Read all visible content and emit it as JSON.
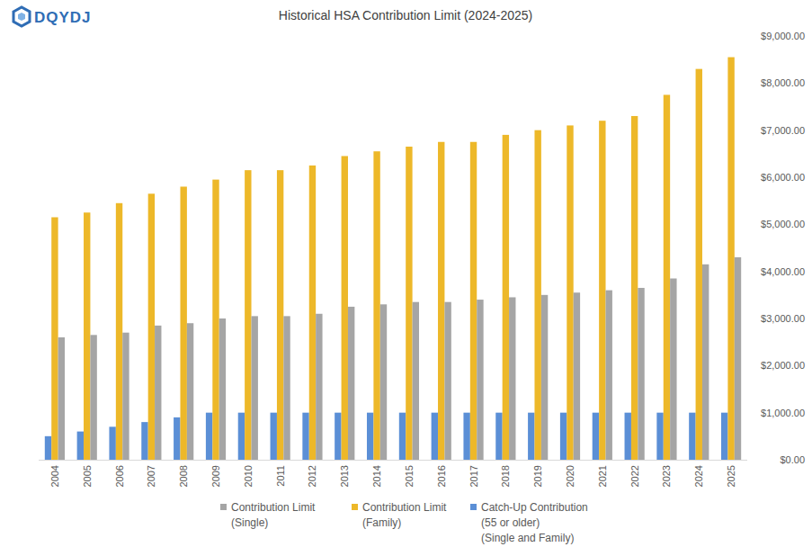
{
  "chart_data": {
    "type": "bar",
    "title": "Historical HSA Contribution Limit (2024-2025)",
    "annotations": [
      "DQYDJ"
    ],
    "categories": [
      "2004",
      "2005",
      "2006",
      "2007",
      "2008",
      "2009",
      "2010",
      "2011",
      "2012",
      "2013",
      "2014",
      "2015",
      "2016",
      "2017",
      "2018",
      "2019",
      "2020",
      "2021",
      "2022",
      "2023",
      "2024",
      "2025"
    ],
    "series": [
      {
        "name": "Catch-Up Contribution (55 or older) (Single and Family)",
        "color": "#5B8FD6",
        "values": [
          500,
          600,
          700,
          800,
          900,
          1000,
          1000,
          1000,
          1000,
          1000,
          1000,
          1000,
          1000,
          1000,
          1000,
          1000,
          1000,
          1000,
          1000,
          1000,
          1000,
          1000
        ]
      },
      {
        "name": "Contribution Limit (Family)",
        "color": "#EDB829",
        "values": [
          5150,
          5250,
          5450,
          5650,
          5800,
          5950,
          6150,
          6150,
          6250,
          6450,
          6550,
          6650,
          6750,
          6750,
          6900,
          7000,
          7100,
          7200,
          7300,
          7750,
          8300,
          8550
        ]
      },
      {
        "name": "Contribution Limit (Single)",
        "color": "#A5A5A5",
        "values": [
          2600,
          2650,
          2700,
          2850,
          2900,
          3000,
          3050,
          3050,
          3100,
          3250,
          3300,
          3350,
          3350,
          3400,
          3450,
          3500,
          3550,
          3600,
          3650,
          3850,
          4150,
          4300
        ]
      }
    ],
    "ylim": [
      0,
      9000
    ],
    "yticks": [
      {
        "value": 0,
        "label": "$0.00"
      },
      {
        "value": 1000,
        "label": "$1,000.00"
      },
      {
        "value": 2000,
        "label": "$2,000.00"
      },
      {
        "value": 3000,
        "label": "$3,000.00"
      },
      {
        "value": 4000,
        "label": "$4,000.00"
      },
      {
        "value": 5000,
        "label": "$5,000.00"
      },
      {
        "value": 6000,
        "label": "$6,000.00"
      },
      {
        "value": 7000,
        "label": "$7,000.00"
      },
      {
        "value": 8000,
        "label": "$8,000.00"
      },
      {
        "value": 9000,
        "label": "$9,000.00"
      }
    ],
    "grid": false,
    "legend": "bottom"
  }
}
